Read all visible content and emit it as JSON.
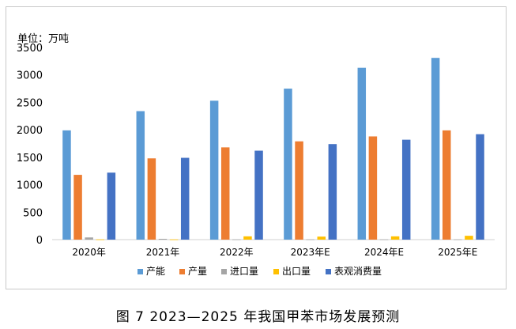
{
  "caption": "图 7  2023—2025 年我国甲苯市场发展预测",
  "chart_data": {
    "type": "bar",
    "unit_label": "单位：万吨",
    "categories": [
      "2020年",
      "2021年",
      "2022年",
      "2023年E",
      "2024年E",
      "2025年E"
    ],
    "ylim": [
      0,
      3500
    ],
    "yticks": [
      0,
      500,
      1000,
      1500,
      2000,
      2500,
      3000,
      3500
    ],
    "grid": false,
    "legend_position": "bottom",
    "series": [
      {
        "name": "产能",
        "color": "#5b9bd5",
        "values": [
          1990,
          2340,
          2530,
          2750,
          3130,
          3310
        ]
      },
      {
        "name": "产量",
        "color": "#ed7d31",
        "values": [
          1180,
          1480,
          1680,
          1790,
          1880,
          1990
        ]
      },
      {
        "name": "进口量",
        "color": "#a5a5a5",
        "values": [
          40,
          15,
          5,
          5,
          5,
          5
        ]
      },
      {
        "name": "出口量",
        "color": "#ffc000",
        "values": [
          5,
          5,
          60,
          55,
          60,
          70
        ]
      },
      {
        "name": "表观消费量",
        "color": "#4472c4",
        "values": [
          1220,
          1490,
          1620,
          1740,
          1820,
          1920
        ]
      }
    ]
  }
}
